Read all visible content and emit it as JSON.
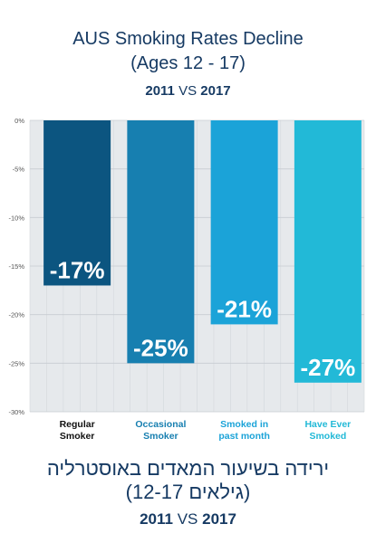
{
  "header": {
    "title_line1": "AUS Smoking Rates Decline",
    "title_line2": "(Ages 12 - 17)",
    "year_start": "2011",
    "vs": "VS",
    "year_end": "2017"
  },
  "footer": {
    "hebrew_line1": "ירידה בשיעור המאדים באוסטרליה",
    "hebrew_line2": "(גילאים 12-17)",
    "year_start": "2011",
    "vs": "VS",
    "year_end": "2017"
  },
  "colors": {
    "title": "#163a63",
    "plot_background": "#e6e9ec",
    "grid": "#c7ccd1"
  },
  "chart_data": {
    "type": "bar",
    "title": "AUS Smoking Rates Decline (Ages 12 - 17)",
    "categories": [
      "Regular\nSmoker",
      "Occasional\nSmoker",
      "Smoked in\npast month",
      "Have Ever\nSmoked"
    ],
    "values": [
      -17,
      -25,
      -21,
      -27
    ],
    "value_labels": [
      "-17%",
      "-25%",
      "-21%",
      "-27%"
    ],
    "bar_colors": [
      "#0c5580",
      "#177fb0",
      "#1ba3d8",
      "#22b9d7"
    ],
    "category_label_colors": [
      "#111111",
      "#177fb0",
      "#1ba3d8",
      "#22b9d7"
    ],
    "ylim": [
      -30,
      0
    ],
    "yticks": [
      0,
      -5,
      -10,
      -15,
      -20,
      -25,
      -30
    ],
    "ytick_labels": [
      "0%",
      "-5%",
      "-10%",
      "-15%",
      "-20%",
      "-25%",
      "-30%"
    ],
    "grid": true,
    "xlabel": "",
    "ylabel": ""
  }
}
